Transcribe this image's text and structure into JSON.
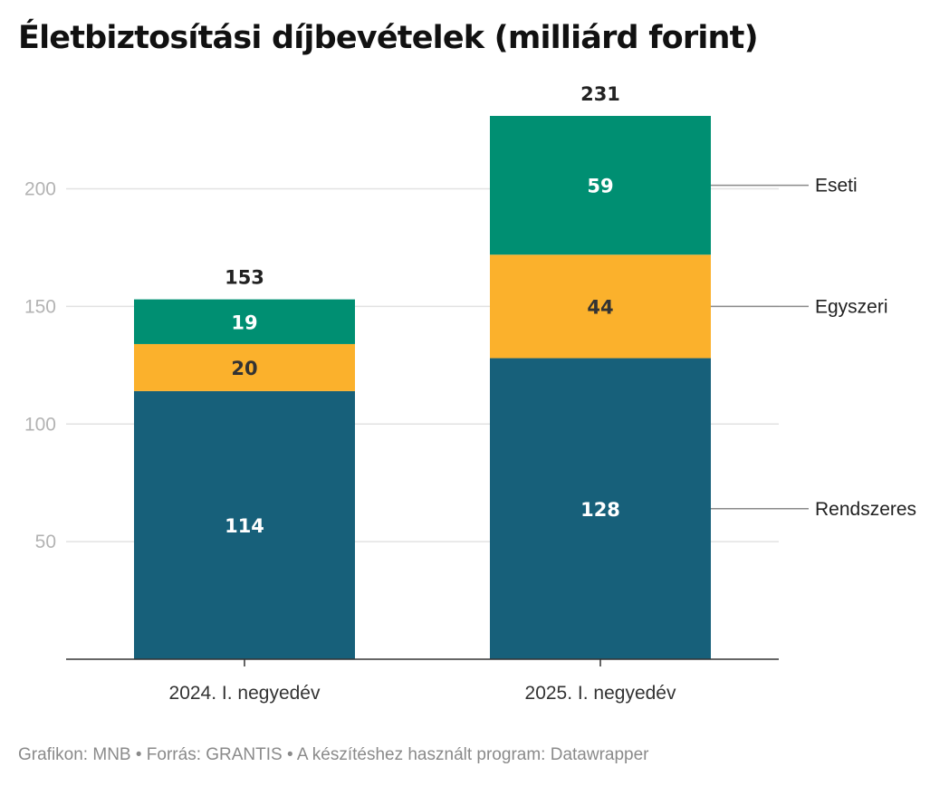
{
  "title": "Életbiztosítási díjbevételek (milliárd forint)",
  "footer": "Grafikon: MNB • Forrás: GRANTIS • A készítéshez használt program: Datawrapper",
  "chart_data": {
    "type": "bar",
    "stacked": true,
    "categories": [
      "2024. I. negyedév",
      "2025. I. negyedév"
    ],
    "series": [
      {
        "name": "Rendszeres",
        "values": [
          114,
          128
        ],
        "color": "#17607a"
      },
      {
        "name": "Egyszeri",
        "values": [
          20,
          44
        ],
        "color": "#fbb12c"
      },
      {
        "name": "Eseti",
        "values": [
          19,
          59
        ],
        "color": "#008f72"
      }
    ],
    "totals": [
      153,
      231
    ],
    "yticks": [
      50,
      100,
      150,
      200
    ],
    "ylim": [
      0,
      231
    ],
    "grid": true,
    "legend": "direct labels at right"
  }
}
